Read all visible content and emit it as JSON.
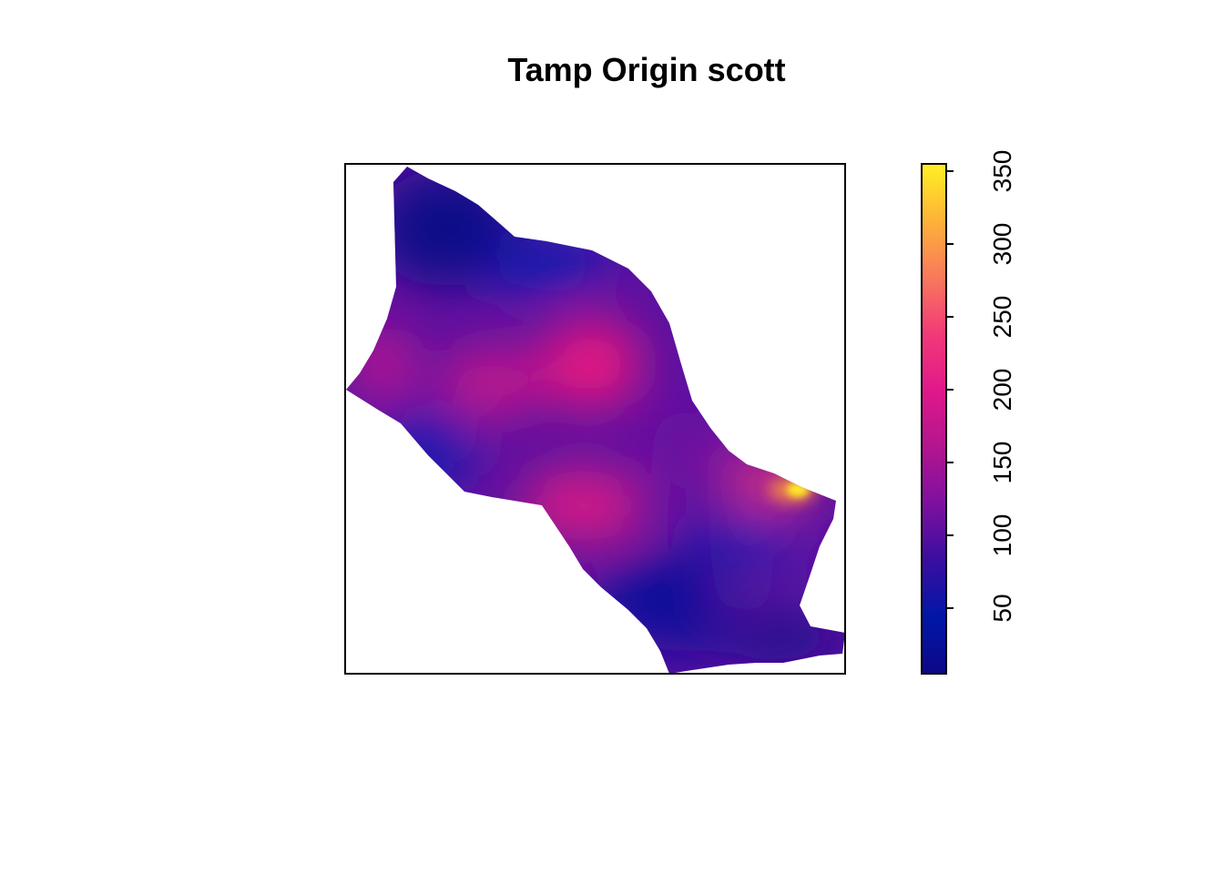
{
  "chart_data": {
    "type": "heatmap",
    "title": "Tamp Origin scott",
    "xlabel": "",
    "ylabel": "",
    "axes_shown": false,
    "legend_placement": "right",
    "color_scale": {
      "palette": "plasma",
      "min": 5,
      "max": 355,
      "ticks": [
        50,
        100,
        150,
        200,
        250,
        300,
        350
      ],
      "tick_labels": [
        "50",
        "100",
        "150",
        "200",
        "250",
        "300",
        "350"
      ],
      "colors": [
        "#0d0887",
        "#0017a8",
        "#3a0ea0",
        "#7d10a0",
        "#b3158f",
        "#e0188a",
        "#f23a78",
        "#f8795c",
        "#fdb337",
        "#fff023"
      ]
    },
    "hotspots": [
      {
        "label": "center",
        "value": 190
      },
      {
        "label": "west",
        "value": 170
      },
      {
        "label": "south-center",
        "value": 180
      },
      {
        "label": "east edge",
        "value": 350
      },
      {
        "label": "north",
        "value": 10
      },
      {
        "label": "south",
        "value": 10
      }
    ]
  }
}
